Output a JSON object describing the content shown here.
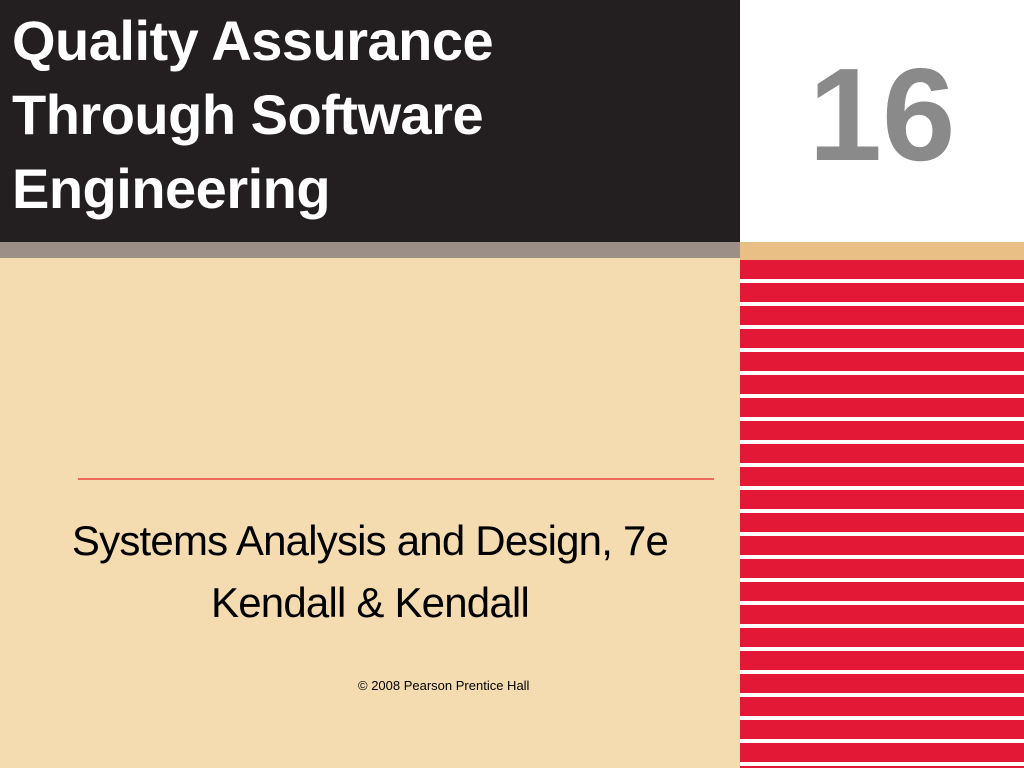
{
  "title": {
    "line1": "Quality Assurance",
    "line2": "Through Software",
    "line3": "Engineering"
  },
  "chapter_number": "16",
  "subtitle": {
    "line1": "Systems Analysis and Design, 7e",
    "line2": "Kendall & Kendall"
  },
  "copyright": "© 2008 Pearson Prentice Hall",
  "colors": {
    "title_background": "#231f20",
    "page_background": "#f5dcb0",
    "stripe_red": "#e31837",
    "chapter_number": "#8a8a8a"
  }
}
